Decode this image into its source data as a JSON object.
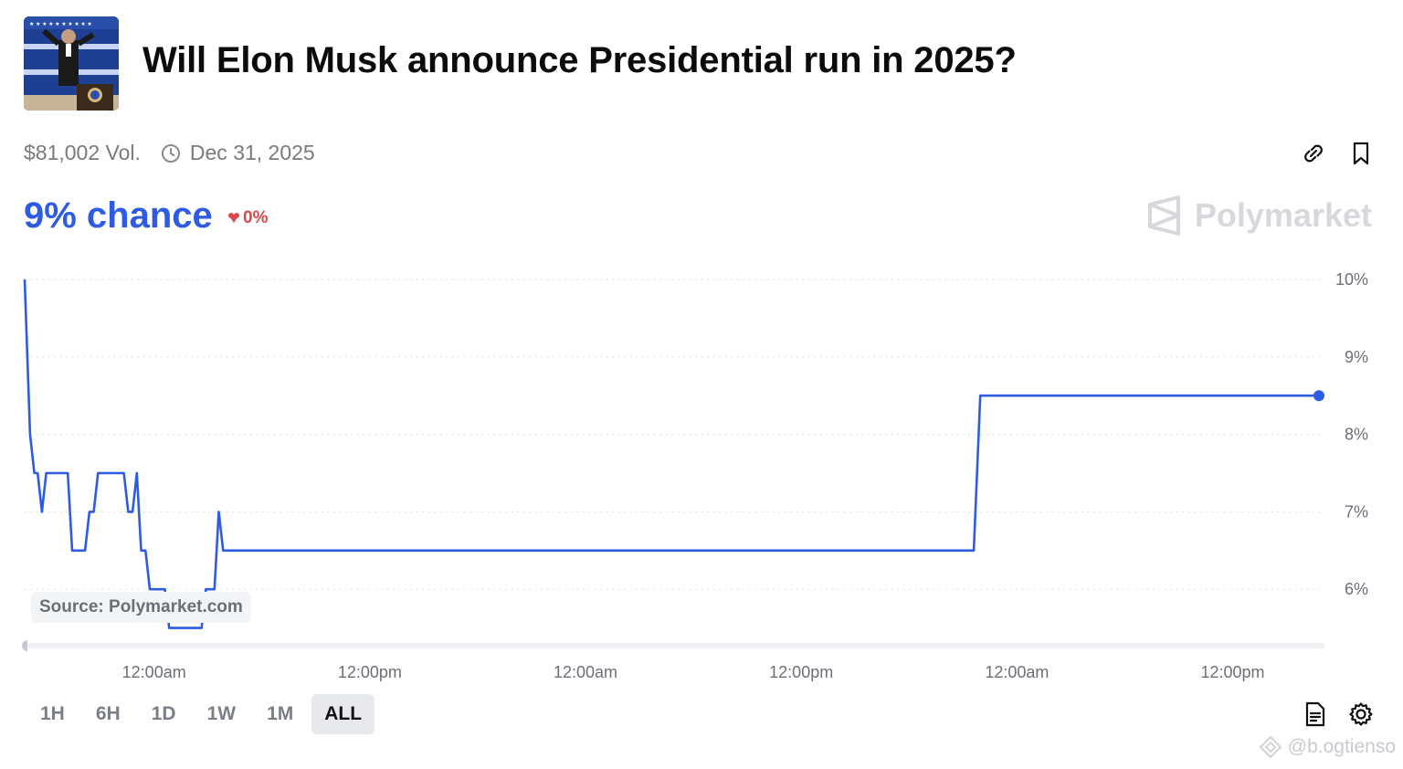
{
  "header": {
    "title": "Will Elon Musk announce Presidential run in 2025?",
    "volume": "$81,002 Vol.",
    "end_date": "Dec 31, 2025",
    "chance": "9% chance",
    "delta": "0%",
    "brand": "Polymarket",
    "accent_color": "#2d5be3",
    "delta_color": "#e0474c"
  },
  "chart_data": {
    "type": "line",
    "ylim": [
      5.3,
      10.0
    ],
    "y_ticks": [
      10,
      9,
      8,
      7,
      6
    ],
    "y_tick_labels": [
      "10%",
      "9%",
      "8%",
      "7%",
      "6%"
    ],
    "x_tick_labels": [
      "12:00am",
      "12:00pm",
      "12:00am",
      "12:00pm",
      "12:00am",
      "12:00pm"
    ],
    "x_range": [
      0,
      60
    ],
    "x_ticks": [
      6,
      16,
      26,
      36,
      46,
      56
    ],
    "grid": "horizontal-dotted",
    "series": [
      {
        "color": "#2d5be3",
        "points": [
          [
            0.0,
            10.0
          ],
          [
            0.25,
            8.0
          ],
          [
            0.45,
            7.5
          ],
          [
            0.6,
            7.5
          ],
          [
            0.8,
            7.0
          ],
          [
            1.0,
            7.5
          ],
          [
            2.0,
            7.5
          ],
          [
            2.2,
            6.5
          ],
          [
            2.8,
            6.5
          ],
          [
            3.0,
            7.0
          ],
          [
            3.2,
            7.0
          ],
          [
            3.4,
            7.5
          ],
          [
            4.6,
            7.5
          ],
          [
            4.8,
            7.0
          ],
          [
            5.0,
            7.0
          ],
          [
            5.2,
            7.5
          ],
          [
            5.4,
            6.5
          ],
          [
            5.6,
            6.5
          ],
          [
            5.8,
            6.0
          ],
          [
            6.5,
            6.0
          ],
          [
            6.7,
            5.5
          ],
          [
            8.2,
            5.5
          ],
          [
            8.4,
            6.0
          ],
          [
            8.8,
            6.0
          ],
          [
            9.0,
            7.0
          ],
          [
            9.2,
            6.5
          ],
          [
            44.0,
            6.5
          ],
          [
            44.3,
            8.5
          ],
          [
            60.0,
            8.5
          ]
        ]
      }
    ],
    "source_note": "Source: Polymarket.com"
  },
  "ranges": [
    "1H",
    "6H",
    "1D",
    "1W",
    "1M",
    "ALL"
  ],
  "active_range": "ALL",
  "watermark": "@b.ogtienso",
  "icons": {
    "link": "link-icon",
    "bookmark": "bookmark-icon",
    "clock": "clock-icon",
    "document": "document-icon",
    "settings": "gear-icon",
    "brand": "polymarket-logo-icon"
  }
}
